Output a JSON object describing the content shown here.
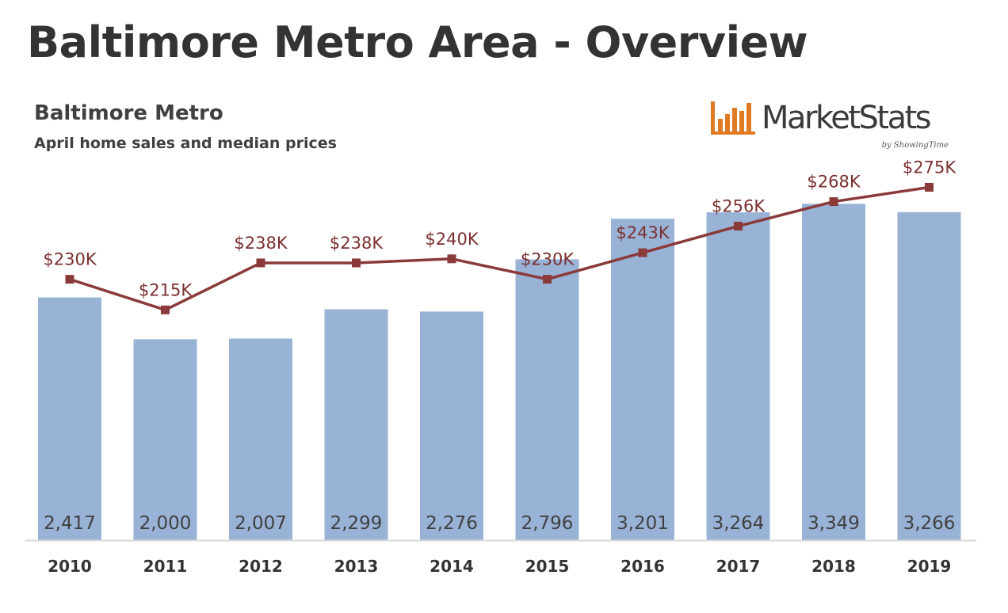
{
  "page": {
    "title": "Baltimore Metro Area - Overview"
  },
  "logo": {
    "text": "MarketStats",
    "tagline": "by ShowingTime",
    "icon": "bar-chart-logo-icon",
    "color": "#e07b24"
  },
  "colors": {
    "bar": "#98b3d6",
    "line": "#8b3a3a",
    "text": "#404040",
    "price_label": "#7b3030",
    "axis": "#d9d9d9"
  },
  "chart_data": {
    "type": "bar",
    "title": "Baltimore Metro",
    "subtitle": "April home sales and median prices",
    "categories": [
      "2010",
      "2011",
      "2012",
      "2013",
      "2014",
      "2015",
      "2016",
      "2017",
      "2018",
      "2019"
    ],
    "series": [
      {
        "type": "bar",
        "values": [
          2417,
          2000,
          2007,
          2299,
          2276,
          2796,
          3201,
          3264,
          3349,
          3266
        ],
        "labels": [
          "2,417",
          "2,000",
          "2,007",
          "2,299",
          "2,276",
          "2,796",
          "3,201",
          "3,264",
          "3,349",
          "3,266"
        ]
      },
      {
        "type": "line",
        "values": [
          230,
          215,
          238,
          238,
          240,
          230,
          243,
          256,
          268,
          275
        ],
        "labels": [
          "$230K",
          "$215K",
          "$238K",
          "$238K",
          "$240K",
          "$230K",
          "$243K",
          "$256K",
          "$268K",
          "$275K"
        ]
      }
    ],
    "ylim_bar": [
      0,
      3500
    ],
    "ylim_line": [
      0,
      350
    ],
    "grid": false,
    "legend": "none"
  }
}
